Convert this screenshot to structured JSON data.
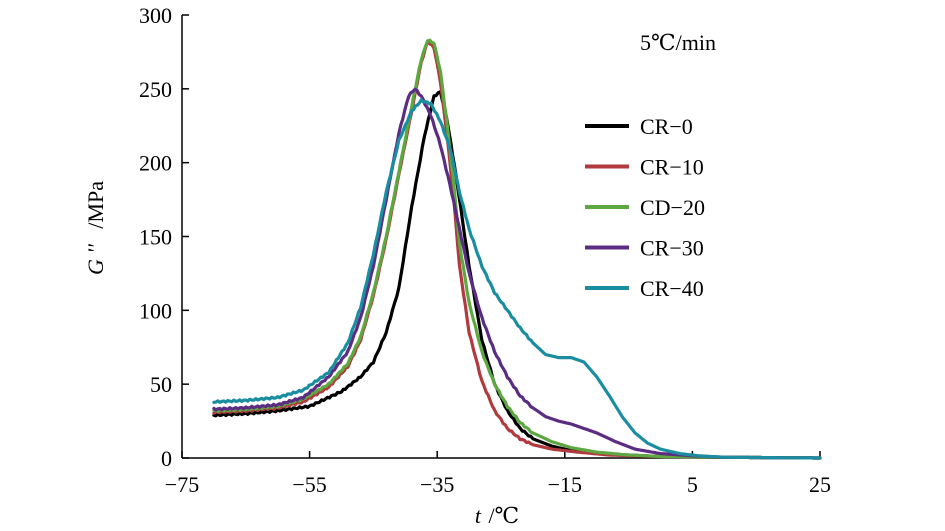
{
  "chart_data": {
    "type": "line",
    "title": "",
    "annotation": "5℃/min",
    "xlabel_var": "t",
    "xlabel_unit": "/℃",
    "ylabel_var": "G ''",
    "ylabel_unit": "/MPa",
    "xlim": [
      -75,
      25
    ],
    "ylim": [
      0,
      300
    ],
    "xticks": [
      -75,
      -55,
      -35,
      -15,
      5,
      25
    ],
    "xtick_labels": [
      "−75",
      "−55",
      "−35",
      "−15",
      "5",
      "25"
    ],
    "yticks": [
      0,
      50,
      100,
      150,
      200,
      250,
      300
    ],
    "ytick_labels": [
      "0",
      "50",
      "100",
      "150",
      "200",
      "250",
      "300"
    ],
    "grid": false,
    "legend_position": "right",
    "series": [
      {
        "name": "CR−0",
        "color": "#000000",
        "points": [
          [
            -70,
            29
          ],
          [
            -65,
            30
          ],
          [
            -60,
            32
          ],
          [
            -55,
            35
          ],
          [
            -50,
            45
          ],
          [
            -47,
            55
          ],
          [
            -45,
            65
          ],
          [
            -43,
            85
          ],
          [
            -41,
            115
          ],
          [
            -39,
            170
          ],
          [
            -37,
            218
          ],
          [
            -35.5,
            245
          ],
          [
            -34.5,
            248
          ],
          [
            -33.5,
            230
          ],
          [
            -32,
            190
          ],
          [
            -30,
            130
          ],
          [
            -28,
            80
          ],
          [
            -26,
            50
          ],
          [
            -24,
            32
          ],
          [
            -22,
            20
          ],
          [
            -20,
            13
          ],
          [
            -17,
            8
          ],
          [
            -14,
            5
          ],
          [
            -10,
            3
          ],
          [
            -5,
            2
          ],
          [
            0,
            1
          ],
          [
            10,
            0.5
          ],
          [
            25,
            0
          ]
        ]
      },
      {
        "name": "CR−10",
        "color": "#b03a3e",
        "points": [
          [
            -70,
            31
          ],
          [
            -65,
            32
          ],
          [
            -60,
            34
          ],
          [
            -56,
            38
          ],
          [
            -52,
            48
          ],
          [
            -49,
            62
          ],
          [
            -47,
            80
          ],
          [
            -45,
            110
          ],
          [
            -43,
            148
          ],
          [
            -41,
            192
          ],
          [
            -39,
            235
          ],
          [
            -37.5,
            268
          ],
          [
            -36.5,
            282
          ],
          [
            -35.5,
            278
          ],
          [
            -34.5,
            255
          ],
          [
            -33.5,
            220
          ],
          [
            -32.5,
            180
          ],
          [
            -31.5,
            130
          ],
          [
            -30,
            85
          ],
          [
            -28,
            52
          ],
          [
            -26,
            32
          ],
          [
            -24,
            20
          ],
          [
            -22,
            13
          ],
          [
            -20,
            9
          ],
          [
            -17,
            6
          ],
          [
            -13,
            4
          ],
          [
            -8,
            2
          ],
          [
            0,
            1
          ],
          [
            10,
            0.5
          ],
          [
            25,
            0
          ]
        ]
      },
      {
        "name": "CD−20",
        "color": "#5da840",
        "points": [
          [
            -70,
            32
          ],
          [
            -65,
            33
          ],
          [
            -60,
            35
          ],
          [
            -56,
            40
          ],
          [
            -52,
            50
          ],
          [
            -49,
            64
          ],
          [
            -47,
            82
          ],
          [
            -45,
            112
          ],
          [
            -43,
            150
          ],
          [
            -41,
            194
          ],
          [
            -39,
            238
          ],
          [
            -37.5,
            270
          ],
          [
            -36.5,
            283
          ],
          [
            -35.5,
            281
          ],
          [
            -34.5,
            262
          ],
          [
            -33.5,
            228
          ],
          [
            -32.5,
            190
          ],
          [
            -31.5,
            145
          ],
          [
            -30,
            105
          ],
          [
            -28,
            72
          ],
          [
            -26,
            50
          ],
          [
            -24,
            35
          ],
          [
            -22,
            24
          ],
          [
            -20,
            17
          ],
          [
            -17,
            11
          ],
          [
            -14,
            7
          ],
          [
            -10,
            4
          ],
          [
            -5,
            2
          ],
          [
            0,
            1
          ],
          [
            10,
            0.5
          ],
          [
            25,
            0
          ]
        ]
      },
      {
        "name": "CR−30",
        "color": "#5b2d82",
        "points": [
          [
            -70,
            33
          ],
          [
            -65,
            34
          ],
          [
            -60,
            36
          ],
          [
            -56,
            41
          ],
          [
            -52,
            55
          ],
          [
            -49,
            72
          ],
          [
            -47,
            95
          ],
          [
            -45,
            130
          ],
          [
            -43,
            175
          ],
          [
            -41,
            220
          ],
          [
            -39.5,
            245
          ],
          [
            -38.5,
            250
          ],
          [
            -37.5,
            245
          ],
          [
            -36,
            232
          ],
          [
            -34.5,
            212
          ],
          [
            -33,
            185
          ],
          [
            -31.5,
            155
          ],
          [
            -30,
            125
          ],
          [
            -28,
            95
          ],
          [
            -26,
            72
          ],
          [
            -24,
            55
          ],
          [
            -22,
            42
          ],
          [
            -20,
            34
          ],
          [
            -18,
            28
          ],
          [
            -16,
            25
          ],
          [
            -14,
            23
          ],
          [
            -12,
            20
          ],
          [
            -10,
            17
          ],
          [
            -7,
            11
          ],
          [
            -4,
            6
          ],
          [
            0,
            3
          ],
          [
            5,
            1.5
          ],
          [
            10,
            0.5
          ],
          [
            25,
            0
          ]
        ]
      },
      {
        "name": "CR−40",
        "color": "#1a8ea0",
        "points": [
          [
            -70,
            38
          ],
          [
            -65,
            39
          ],
          [
            -60,
            41
          ],
          [
            -56,
            46
          ],
          [
            -52,
            58
          ],
          [
            -49,
            78
          ],
          [
            -47,
            102
          ],
          [
            -45,
            138
          ],
          [
            -43,
            180
          ],
          [
            -41,
            215
          ],
          [
            -39,
            235
          ],
          [
            -37.5,
            242
          ],
          [
            -36,
            240
          ],
          [
            -34.5,
            228
          ],
          [
            -33,
            210
          ],
          [
            -31.5,
            180
          ],
          [
            -30,
            155
          ],
          [
            -28,
            130
          ],
          [
            -26,
            112
          ],
          [
            -24,
            100
          ],
          [
            -22,
            88
          ],
          [
            -20,
            78
          ],
          [
            -18,
            70
          ],
          [
            -16,
            68
          ],
          [
            -14,
            68
          ],
          [
            -12,
            65
          ],
          [
            -10,
            55
          ],
          [
            -8,
            42
          ],
          [
            -6,
            28
          ],
          [
            -4,
            17
          ],
          [
            -2,
            10
          ],
          [
            0,
            6
          ],
          [
            3,
            3
          ],
          [
            6,
            1.5
          ],
          [
            10,
            0.5
          ],
          [
            25,
            0
          ]
        ]
      }
    ]
  }
}
